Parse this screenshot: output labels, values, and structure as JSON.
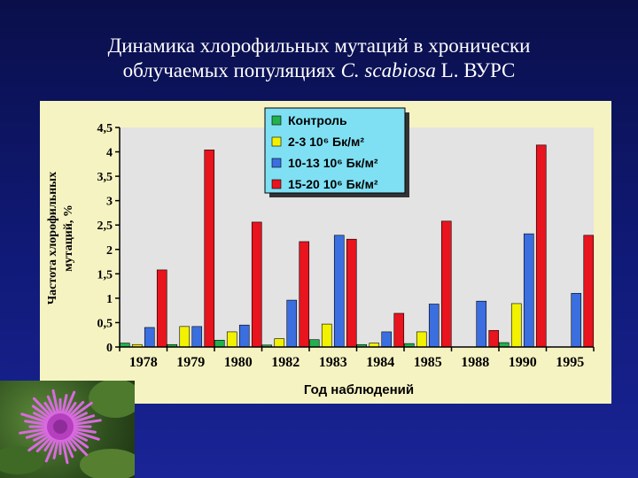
{
  "title_line1": "Динамика хлорофильных мутаций в хронически",
  "title_line2_a": "облучаемых популяциях ",
  "title_line2_species": "C. scabiosa",
  "title_line2_b": " L. ВУРС",
  "photo_icon": "knapweed-flower-photo",
  "chart_data": {
    "type": "bar",
    "ylabel_line1": "Частота хлорофильных",
    "ylabel_line2": "мутаций, %",
    "xlabel": "Год наблюдений",
    "ylim": [
      0,
      4.5
    ],
    "yticks": [
      "0",
      "0,5",
      "1",
      "1,5",
      "2",
      "2,5",
      "3",
      "3,5",
      "4",
      "4,5"
    ],
    "yticks_values": [
      0,
      0.5,
      1,
      1.5,
      2,
      2.5,
      3,
      3.5,
      4,
      4.5
    ],
    "grid": false,
    "legend_placement": "top-center",
    "categories": [
      "1978",
      "1979",
      "1980",
      "1982",
      "1983",
      "1984",
      "1985",
      "1988",
      "1990",
      "1995"
    ],
    "series": [
      {
        "name": "Контроль",
        "color": "#22b14c",
        "values": [
          0.08,
          0.05,
          0.14,
          0.04,
          0.15,
          0.05,
          0.07,
          null,
          0.09,
          null
        ]
      },
      {
        "name": "2-3 10⁶ Бк/м²",
        "color": "#f2f200",
        "values": [
          0.05,
          0.42,
          0.31,
          0.17,
          0.47,
          0.08,
          0.31,
          null,
          0.89,
          null
        ]
      },
      {
        "name": "10-13 10⁶ Бк/м²",
        "color": "#3b6fe0",
        "values": [
          0.4,
          0.42,
          0.45,
          0.96,
          2.29,
          0.31,
          0.88,
          0.94,
          2.32,
          1.1
        ]
      },
      {
        "name": "15-20 10⁶ Бк/м²",
        "color": "#e8141e",
        "values": [
          1.58,
          4.04,
          2.56,
          2.16,
          2.21,
          0.69,
          2.58,
          0.34,
          4.14,
          2.29
        ]
      }
    ],
    "colors": {
      "plot_background": "#e3e3e3",
      "panel_background": "#f6f3c2",
      "legend_background": "#7fe0f4"
    }
  }
}
